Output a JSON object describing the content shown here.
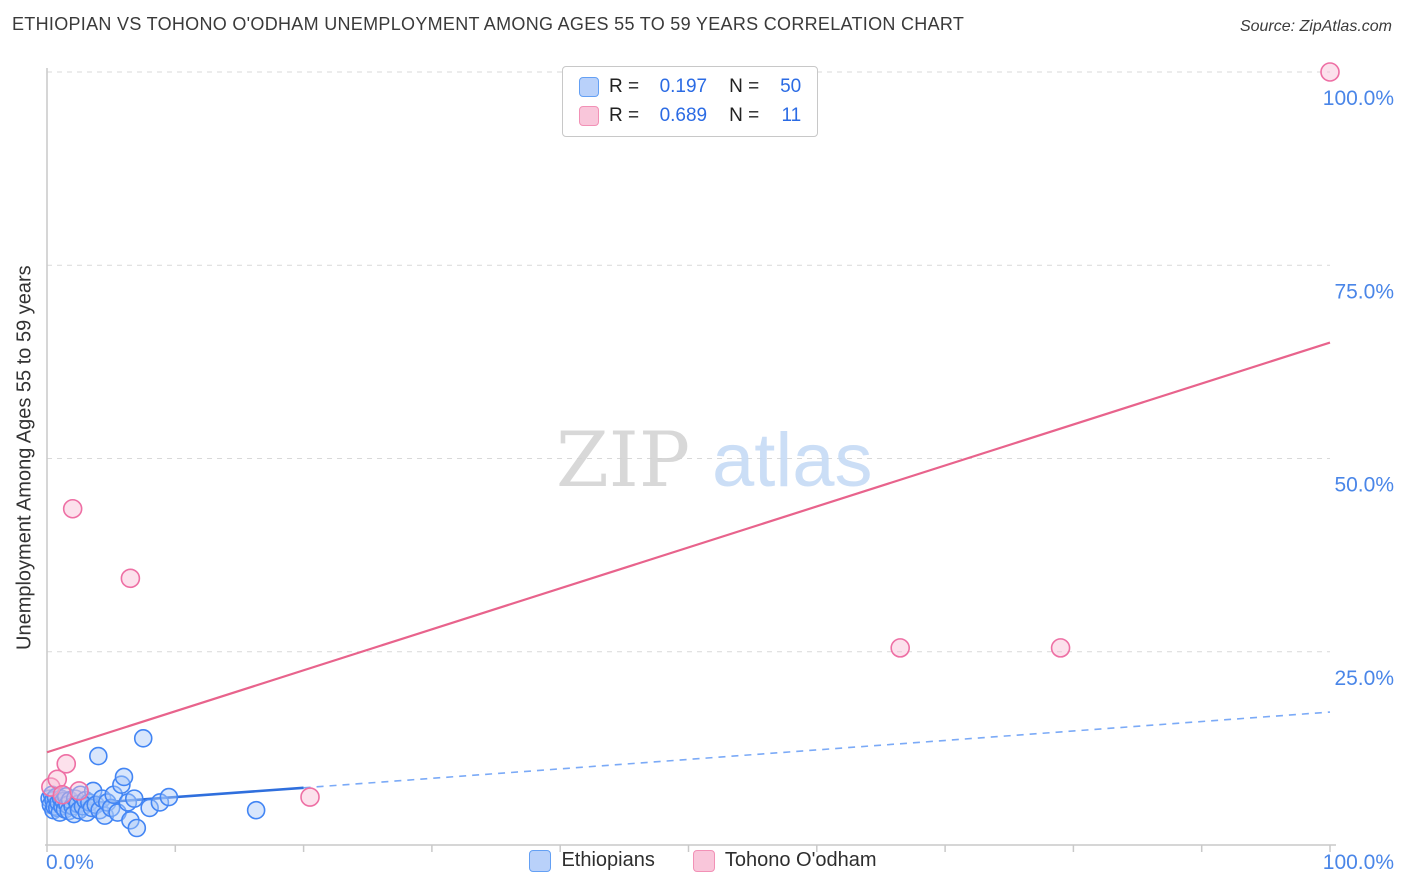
{
  "header": {
    "title": "ETHIOPIAN VS TOHONO O'ODHAM UNEMPLOYMENT AMONG AGES 55 TO 59 YEARS CORRELATION CHART",
    "source": "Source: ZipAtlas.com"
  },
  "watermark": {
    "zip": "ZIP",
    "atlas": "atlas"
  },
  "stats_legend": {
    "rows": [
      {
        "r_label": "R =",
        "r_value": "0.197",
        "n_label": "N =",
        "n_value": "50"
      },
      {
        "r_label": "R =",
        "r_value": "0.689",
        "n_label": "N =",
        "n_value": "11"
      }
    ]
  },
  "bottom_legend": {
    "items": [
      {
        "label": "Ethiopians"
      },
      {
        "label": "Tohono O'odham"
      }
    ]
  },
  "axes": {
    "y_label": "Unemployment Among Ages 55 to 59 years",
    "x_min_label": "0.0%",
    "x_max_label": "100.0%",
    "y_ticks": [
      {
        "value": 100.0,
        "label": "100.0%"
      },
      {
        "value": 75.0,
        "label": "75.0%"
      },
      {
        "value": 50.0,
        "label": "50.0%"
      },
      {
        "value": 25.0,
        "label": "25.0%"
      }
    ],
    "x_tick_values": [
      0,
      10,
      20,
      30,
      40,
      50,
      60,
      70,
      80,
      90,
      100
    ]
  },
  "colors": {
    "accent_blue": "#4a86e8",
    "point_blue_fill": "#a8c7f8",
    "point_blue_stroke": "#4285f4",
    "point_pink_fill": "#f8bcd4",
    "point_pink_stroke": "#ee6fa4",
    "trend_pink": "#e8638c",
    "trend_blue": "#2f6fdd",
    "trend_blue_dashed": "#7baaf7",
    "grid": "#d9d9d9",
    "axis": "#c9c9c9",
    "watermark_zip": "#d2d2d2",
    "watermark_atlas": "#c3d9f5"
  },
  "chart_data": {
    "type": "scatter",
    "title": "Ethiopian vs Tohono O'odham Unemployment Among Ages 55 to 59 years",
    "ylabel": "Unemployment Among Ages 55 to 59 years",
    "xlim": [
      0,
      100
    ],
    "ylim": [
      0,
      100
    ],
    "grid": "horizontal-dashed",
    "legend_position": "bottom-center",
    "series": [
      {
        "name": "Ethiopians",
        "r": 0.197,
        "n": 50,
        "points": [
          [
            0.2,
            6.0
          ],
          [
            0.3,
            5.2
          ],
          [
            0.4,
            6.5
          ],
          [
            0.5,
            4.5
          ],
          [
            0.5,
            5.8
          ],
          [
            0.6,
            5.0
          ],
          [
            0.7,
            6.2
          ],
          [
            0.8,
            4.8
          ],
          [
            0.9,
            5.5
          ],
          [
            1.0,
            4.2
          ],
          [
            1.1,
            6.0
          ],
          [
            1.2,
            5.0
          ],
          [
            1.3,
            5.7
          ],
          [
            1.4,
            4.6
          ],
          [
            1.5,
            6.3
          ],
          [
            1.6,
            5.2
          ],
          [
            1.7,
            4.4
          ],
          [
            1.8,
            5.8
          ],
          [
            2.0,
            5.0
          ],
          [
            2.1,
            4.0
          ],
          [
            2.2,
            6.0
          ],
          [
            2.4,
            5.3
          ],
          [
            2.5,
            4.5
          ],
          [
            2.6,
            6.5
          ],
          [
            2.8,
            5.0
          ],
          [
            3.0,
            5.8
          ],
          [
            3.1,
            4.2
          ],
          [
            3.3,
            5.5
          ],
          [
            3.5,
            4.8
          ],
          [
            3.6,
            7.0
          ],
          [
            3.8,
            5.2
          ],
          [
            4.0,
            11.5
          ],
          [
            4.1,
            4.5
          ],
          [
            4.3,
            6.0
          ],
          [
            4.5,
            3.8
          ],
          [
            4.7,
            5.5
          ],
          [
            5.0,
            4.8
          ],
          [
            5.2,
            6.5
          ],
          [
            5.5,
            4.2
          ],
          [
            5.8,
            7.8
          ],
          [
            6.0,
            8.8
          ],
          [
            6.3,
            5.5
          ],
          [
            6.5,
            3.2
          ],
          [
            6.8,
            6.0
          ],
          [
            7.0,
            2.2
          ],
          [
            7.5,
            13.8
          ],
          [
            8.0,
            4.8
          ],
          [
            8.8,
            5.5
          ],
          [
            9.5,
            6.2
          ],
          [
            16.3,
            4.5
          ]
        ]
      },
      {
        "name": "Tohono O'odham",
        "r": 0.689,
        "n": 11,
        "points": [
          [
            0.3,
            7.5
          ],
          [
            0.8,
            8.5
          ],
          [
            1.2,
            6.5
          ],
          [
            1.5,
            10.5
          ],
          [
            2.0,
            43.5
          ],
          [
            2.5,
            7.0
          ],
          [
            6.5,
            34.5
          ],
          [
            20.5,
            6.2
          ],
          [
            66.5,
            25.5
          ],
          [
            79.0,
            25.5
          ],
          [
            100.0,
            100.0
          ]
        ]
      }
    ],
    "trend_lines": [
      {
        "series": "Ethiopians",
        "style": "solid",
        "x0": 0,
        "y0": 5.0,
        "x1": 20,
        "y1": 7.4
      },
      {
        "series": "Ethiopians",
        "style": "dashed",
        "x0": 20,
        "y0": 7.4,
        "x1": 100,
        "y1": 17.2
      },
      {
        "series": "Tohono O'odham",
        "style": "solid",
        "x0": 0,
        "y0": 12.0,
        "x1": 100,
        "y1": 65.0
      }
    ]
  }
}
